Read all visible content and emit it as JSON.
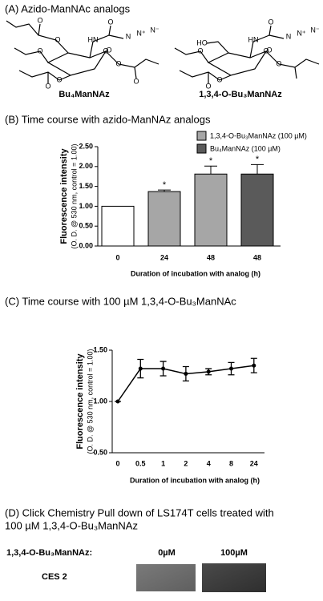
{
  "panel_a": {
    "title": "(A) Azido-ManNAc analogs",
    "structures": [
      {
        "name": "Bu₄ManNAz",
        "atoms": [
          "HN",
          "O",
          "N",
          "N⁺",
          "N⁻",
          "O",
          "O",
          "O",
          "O",
          "O",
          "O",
          "O",
          "O",
          "O"
        ]
      },
      {
        "name": "1,3,4-O-Bu₃ManNAz",
        "atoms": [
          "HN",
          "O",
          "N",
          "N⁺",
          "N⁻",
          "HO",
          "O",
          "O",
          "O",
          "O",
          "O",
          "O"
        ]
      }
    ]
  },
  "chart_data": [
    {
      "type": "bar",
      "title": "(B) Time course with azido-ManNAz analogs",
      "ylabel": [
        "Fluorescence intensity",
        "(O. D. @ 530 nm, control = 1.00)"
      ],
      "xlabel": "Duration of incubation with analog (h)",
      "categories": [
        "0",
        "24",
        "48",
        "48"
      ],
      "series": [
        {
          "color": "#ffffff",
          "values": [
            1.0,
            null,
            null,
            null
          ],
          "errors": [
            null,
            null,
            null,
            null
          ]
        },
        {
          "name": "1,3,4-O-Bu₃ManNAz (100 µM)",
          "color": "#a6a6a6",
          "values": [
            null,
            1.37,
            1.81,
            null
          ],
          "errors": [
            null,
            0.04,
            0.2,
            null
          ]
        },
        {
          "name": "Bu₄ManNAz (100 µM)",
          "color": "#5a5a5a",
          "values": [
            null,
            null,
            null,
            1.81
          ],
          "errors": [
            null,
            null,
            null,
            0.24
          ]
        }
      ],
      "markers": [
        null,
        "*",
        "*",
        "*"
      ],
      "ylim": [
        0,
        2.5
      ],
      "yticks": [
        {
          "value": 0,
          "label": "0.00"
        },
        {
          "value": 0.5,
          "label": "0.50"
        },
        {
          "value": 1,
          "label": "1.00"
        },
        {
          "value": 1.5,
          "label": "1.50"
        },
        {
          "value": 2,
          "label": "2.00"
        },
        {
          "value": 2.5,
          "label": "2.50"
        }
      ]
    },
    {
      "type": "line",
      "title": "(C) Time course with 100 µM 1,3,4-O-Bu₃ManNAc",
      "ylabel": [
        "Fluorescence intensity",
        "(O. D. @ 530 nm, control = 1.00)"
      ],
      "xlabel": "Duration of incubation with analog (h)",
      "categories": [
        "0",
        "0.5",
        "1",
        "2",
        "4",
        "8",
        "24"
      ],
      "values": [
        1.0,
        1.32,
        1.32,
        1.27,
        1.29,
        1.32,
        1.35
      ],
      "errors": [
        0,
        0.09,
        0.07,
        0.07,
        0.03,
        0.06,
        0.07
      ],
      "color": "#000000",
      "ylim": [
        0.5,
        1.5
      ],
      "yticks": [
        {
          "value": 0.5,
          "label": "0.50"
        },
        {
          "value": 1,
          "label": "1.00"
        },
        {
          "value": 1.5,
          "label": "1.50"
        }
      ]
    }
  ],
  "panel_d": {
    "title": [
      "(D) Click Chemistry Pull down of LS174T cells treated with",
      "100 µM 1,3,4-O-Bu₃ManNAz"
    ],
    "row_header": "1,3,4-O-Bu₃ManNAz:",
    "columns": [
      "0µM",
      "100µM"
    ],
    "row": "CES 2"
  }
}
